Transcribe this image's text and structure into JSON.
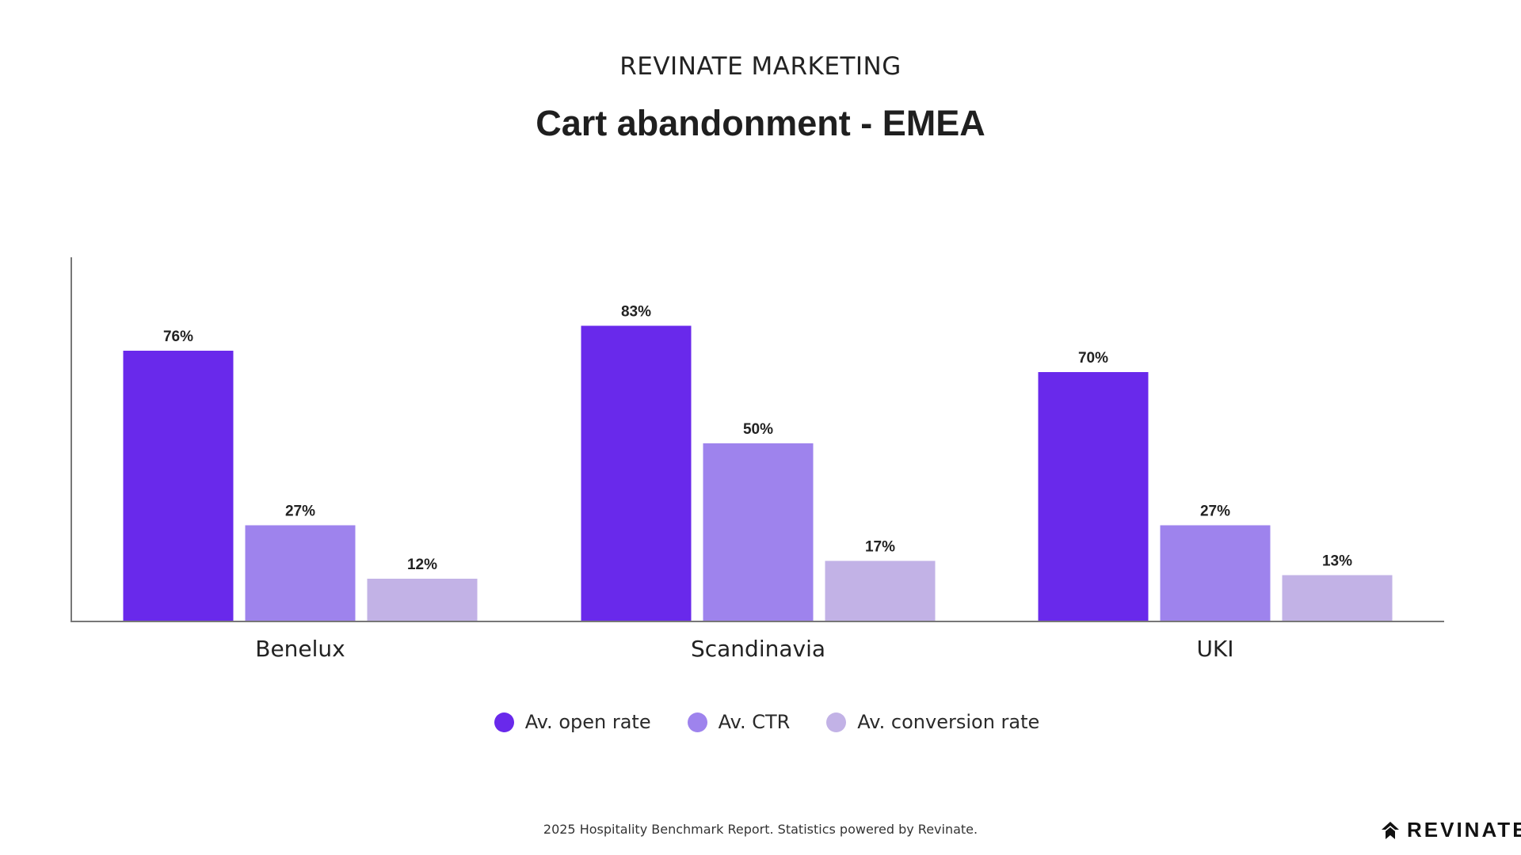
{
  "header": {
    "supertitle": "REVINATE MARKETING",
    "title": "Cart abandonment - EMEA"
  },
  "chart_data": {
    "type": "bar",
    "title": "Cart abandonment - EMEA",
    "categories": [
      "Benelux",
      "Scandinavia",
      "UKI"
    ],
    "series": [
      {
        "name": "Av. open rate",
        "values": [
          76,
          83,
          70
        ],
        "labels": [
          "76%",
          "83%",
          "70%"
        ],
        "color": "#6929eb"
      },
      {
        "name": "Av. CTR",
        "values": [
          27,
          50,
          27
        ],
        "labels": [
          "27%",
          "50%",
          "27%"
        ],
        "color": "#9e83ed"
      },
      {
        "name": "Av. conversion rate",
        "values": [
          12,
          17,
          13
        ],
        "labels": [
          "12%",
          "17%",
          "13%"
        ],
        "color": "#c2b2e6"
      }
    ],
    "ylim": [
      0,
      100
    ],
    "grid": false,
    "legend_position": "bottom"
  },
  "legend": {
    "items": [
      {
        "label": "Av. open rate",
        "color": "#6929eb"
      },
      {
        "label": "Av. CTR",
        "color": "#9e83ed"
      },
      {
        "label": "Av. conversion rate",
        "color": "#c2b2e6"
      }
    ]
  },
  "footer": {
    "note": "2025 Hospitality Benchmark Report. Statistics powered by Revinate.",
    "brand": "REVINATE",
    "brand_icon": "revinate-logo-icon"
  }
}
